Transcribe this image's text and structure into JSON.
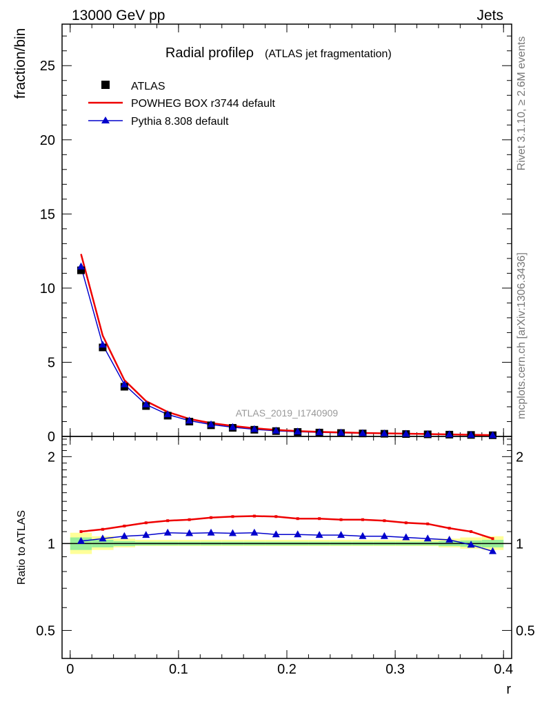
{
  "header": {
    "left": "13000 GeV pp",
    "right": "Jets"
  },
  "side": {
    "rivet": "Rivet 3.1.10, ≥ 2.6M events",
    "mcplots": "mcplots.cern.ch [arXiv:1306.3436]"
  },
  "chart_data": {
    "type": "line",
    "title_main": "Radial profileρ",
    "title_sub": "(ATLAS jet fragmentation)",
    "watermark": "ATLAS_2019_I1740909",
    "xlabel": "r",
    "ylabel_top": "fraction/bin",
    "ylabel_bottom": "Ratio to ATLAS",
    "xlim": [
      -0.0075,
      0.4075
    ],
    "ylim_top": [
      0,
      27.8
    ],
    "ylim_ratio": [
      0.4,
      2.35
    ],
    "x_ticks": [
      {
        "v": 0,
        "label": "0"
      },
      {
        "v": 0.1,
        "label": "0.1"
      },
      {
        "v": 0.2,
        "label": "0.2"
      },
      {
        "v": 0.3,
        "label": "0.3"
      },
      {
        "v": 0.4,
        "label": "0.4"
      }
    ],
    "y_ticks_top": [
      {
        "v": 0,
        "label": "0"
      },
      {
        "v": 5,
        "label": "5"
      },
      {
        "v": 10,
        "label": "10"
      },
      {
        "v": 15,
        "label": "15"
      },
      {
        "v": 20,
        "label": "20"
      },
      {
        "v": 25,
        "label": "25"
      }
    ],
    "y_ticks_ratio": [
      {
        "v": 0.5,
        "label": "0.5"
      },
      {
        "v": 1,
        "label": "1"
      },
      {
        "v": 2,
        "label": "2"
      }
    ],
    "x": [
      0.01,
      0.03,
      0.05,
      0.07,
      0.09,
      0.11,
      0.13,
      0.15,
      0.17,
      0.19,
      0.21,
      0.23,
      0.25,
      0.27,
      0.29,
      0.31,
      0.33,
      0.35,
      0.37,
      0.39
    ],
    "series": [
      {
        "name": "ATLAS",
        "style": "data",
        "color": "#000000",
        "values": [
          11.2,
          6.0,
          3.35,
          2.05,
          1.4,
          1.0,
          0.75,
          0.58,
          0.45,
          0.36,
          0.3,
          0.26,
          0.23,
          0.2,
          0.18,
          0.16,
          0.14,
          0.12,
          0.1,
          0.08
        ]
      },
      {
        "name": "POWHEG BOX r3744 default",
        "style": "line",
        "color": "#ee0000",
        "values": [
          12.3,
          6.8,
          3.8,
          2.38,
          1.65,
          1.18,
          0.9,
          0.71,
          0.55,
          0.44,
          0.36,
          0.31,
          0.27,
          0.235,
          0.21,
          0.185,
          0.16,
          0.135,
          0.11,
          0.086
        ]
      },
      {
        "name": "Pythia 8.308 default",
        "style": "triangle",
        "color": "#0000cc",
        "values": [
          11.45,
          6.18,
          3.5,
          2.15,
          1.48,
          1.06,
          0.8,
          0.62,
          0.48,
          0.38,
          0.32,
          0.275,
          0.245,
          0.212,
          0.19,
          0.168,
          0.146,
          0.125,
          0.099,
          0.077
        ]
      }
    ],
    "ratio_series": [
      {
        "name": "POWHEG BOX r3744 default",
        "color": "#ee0000",
        "values": [
          1.1,
          1.12,
          1.15,
          1.18,
          1.2,
          1.21,
          1.23,
          1.24,
          1.245,
          1.24,
          1.22,
          1.22,
          1.21,
          1.21,
          1.2,
          1.18,
          1.17,
          1.13,
          1.1,
          1.04
        ]
      },
      {
        "name": "Pythia 8.308 default",
        "color": "#0000cc",
        "values": [
          1.02,
          1.04,
          1.06,
          1.07,
          1.09,
          1.085,
          1.09,
          1.085,
          1.09,
          1.075,
          1.075,
          1.07,
          1.07,
          1.06,
          1.06,
          1.05,
          1.04,
          1.03,
          0.99,
          0.94
        ]
      }
    ],
    "ratio_bands": {
      "yellow": [
        [
          0.92,
          1.09
        ],
        [
          0.95,
          1.06
        ],
        [
          0.97,
          1.04
        ],
        [
          0.98,
          1.03
        ],
        [
          0.98,
          1.03
        ],
        [
          0.98,
          1.03
        ],
        [
          0.98,
          1.03
        ],
        [
          0.98,
          1.03
        ],
        [
          0.98,
          1.03
        ],
        [
          0.98,
          1.03
        ],
        [
          0.98,
          1.03
        ],
        [
          0.98,
          1.03
        ],
        [
          0.98,
          1.03
        ],
        [
          0.98,
          1.03
        ],
        [
          0.98,
          1.03
        ],
        [
          0.98,
          1.03
        ],
        [
          0.98,
          1.03
        ],
        [
          0.97,
          1.04
        ],
        [
          0.96,
          1.05
        ],
        [
          0.95,
          1.06
        ]
      ],
      "green": [
        [
          0.95,
          1.05
        ],
        [
          0.97,
          1.03
        ],
        [
          0.98,
          1.02
        ],
        [
          0.985,
          1.015
        ],
        [
          0.985,
          1.015
        ],
        [
          0.985,
          1.015
        ],
        [
          0.985,
          1.015
        ],
        [
          0.985,
          1.015
        ],
        [
          0.985,
          1.015
        ],
        [
          0.985,
          1.015
        ],
        [
          0.985,
          1.015
        ],
        [
          0.985,
          1.015
        ],
        [
          0.985,
          1.015
        ],
        [
          0.985,
          1.015
        ],
        [
          0.985,
          1.015
        ],
        [
          0.985,
          1.015
        ],
        [
          0.985,
          1.015
        ],
        [
          0.98,
          1.02
        ],
        [
          0.975,
          1.025
        ],
        [
          0.97,
          1.03
        ]
      ]
    },
    "colors": {
      "yellow_band": "#ffff99",
      "green_band": "#99ee99"
    }
  }
}
